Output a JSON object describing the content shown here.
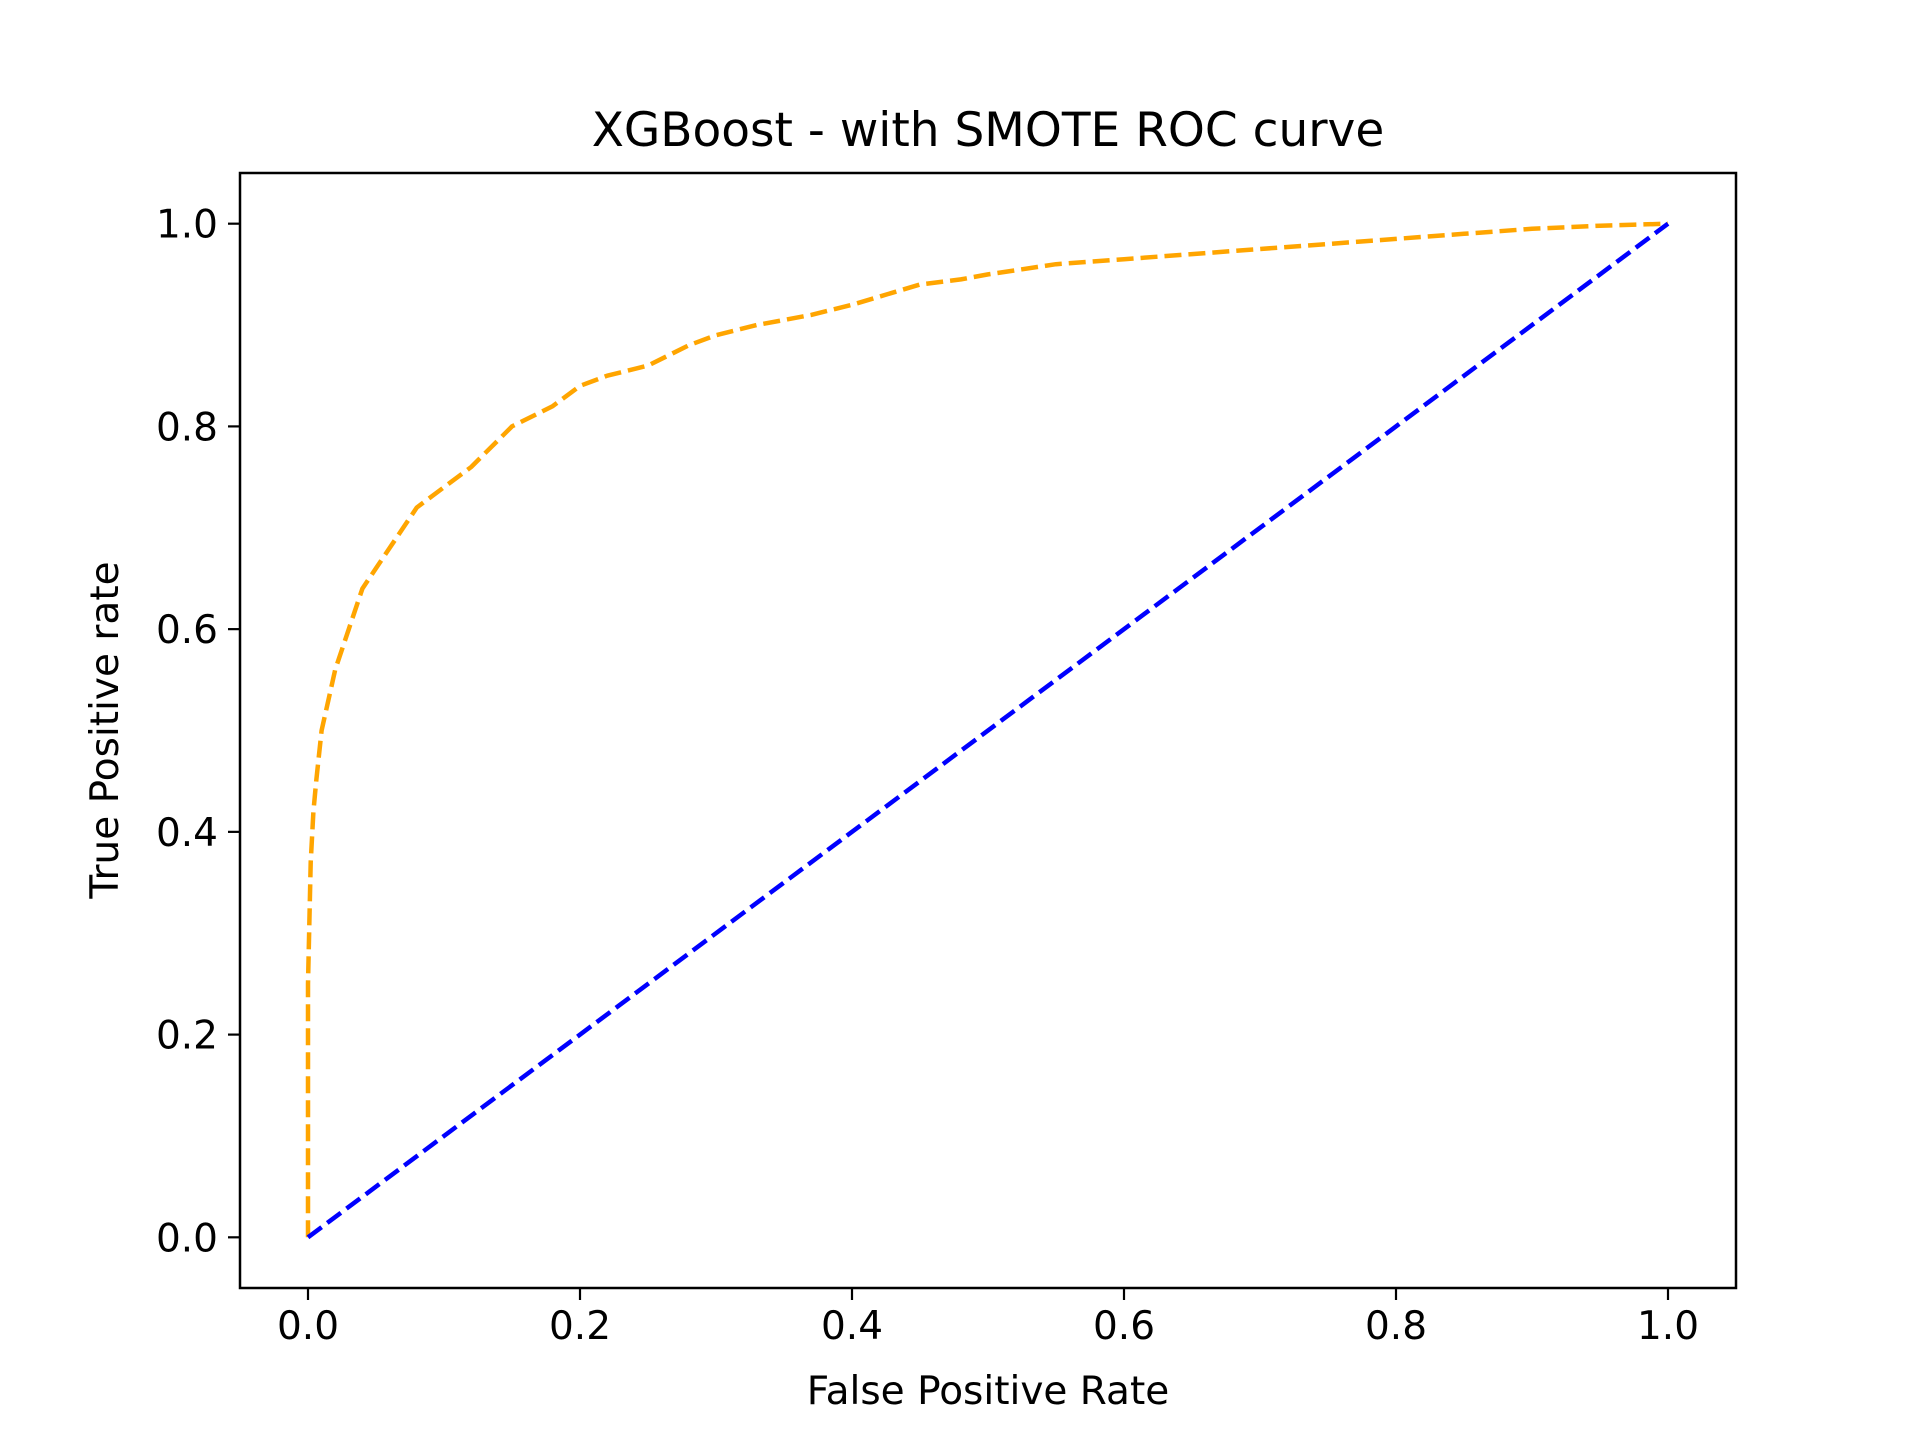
{
  "chart_data": {
    "type": "line",
    "title": "XGBoost - with SMOTE ROC curve",
    "xlabel": "False Positive Rate",
    "ylabel": "True Positive rate",
    "xlim": [
      -0.05,
      1.05
    ],
    "ylim": [
      -0.05,
      1.05
    ],
    "xticks": [
      0.0,
      0.2,
      0.4,
      0.6,
      0.8,
      1.0
    ],
    "yticks": [
      0.0,
      0.2,
      0.4,
      0.6,
      0.8,
      1.0
    ],
    "xtick_labels": [
      "0.0",
      "0.2",
      "0.4",
      "0.6",
      "0.8",
      "1.0"
    ],
    "ytick_labels": [
      "0.0",
      "0.2",
      "0.4",
      "0.6",
      "0.8",
      "1.0"
    ],
    "grid": false,
    "legend": "none",
    "series": [
      {
        "color": "#ffa500",
        "linestyle": "dashed",
        "x": [
          0.0,
          0.0,
          0.002,
          0.004,
          0.006,
          0.01,
          0.015,
          0.02,
          0.03,
          0.04,
          0.05,
          0.06,
          0.07,
          0.08,
          0.1,
          0.12,
          0.15,
          0.18,
          0.2,
          0.22,
          0.25,
          0.28,
          0.3,
          0.33,
          0.35,
          0.37,
          0.4,
          0.45,
          0.48,
          0.5,
          0.55,
          0.6,
          0.65,
          0.7,
          0.75,
          0.8,
          0.85,
          0.9,
          0.95,
          1.0
        ],
        "y": [
          0.0,
          0.25,
          0.37,
          0.42,
          0.45,
          0.5,
          0.53,
          0.56,
          0.6,
          0.64,
          0.66,
          0.68,
          0.7,
          0.72,
          0.74,
          0.76,
          0.8,
          0.82,
          0.84,
          0.85,
          0.86,
          0.88,
          0.89,
          0.9,
          0.905,
          0.91,
          0.92,
          0.94,
          0.945,
          0.95,
          0.96,
          0.965,
          0.97,
          0.975,
          0.98,
          0.985,
          0.99,
          0.995,
          0.998,
          1.0
        ]
      },
      {
        "color": "#0000ff",
        "linestyle": "dashed",
        "x": [
          0.0,
          1.0
        ],
        "y": [
          0.0,
          1.0
        ]
      }
    ]
  }
}
